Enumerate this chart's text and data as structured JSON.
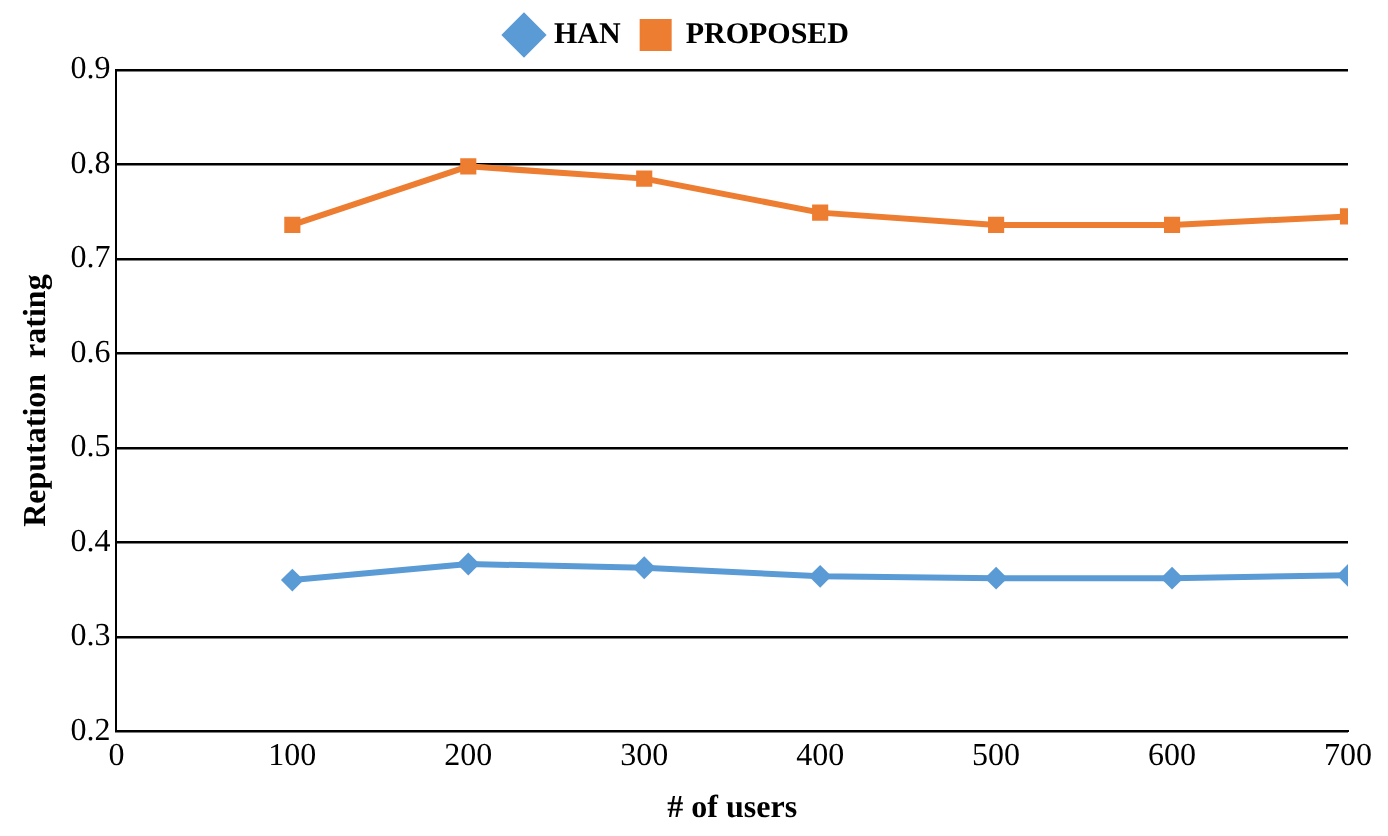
{
  "chart_data": {
    "type": "line",
    "xlabel": "# of users",
    "ylabel": "Reputation  rating",
    "x": [
      100,
      200,
      300,
      400,
      500,
      600,
      700
    ],
    "series": [
      {
        "name": "HAN",
        "color": "#5b9bd5",
        "marker": "diamond",
        "values": [
          0.36,
          0.377,
          0.373,
          0.364,
          0.362,
          0.362,
          0.365
        ]
      },
      {
        "name": "PROPOSED",
        "color": "#ed7d31",
        "marker": "square",
        "values": [
          0.736,
          0.798,
          0.785,
          0.749,
          0.736,
          0.736,
          0.745
        ]
      }
    ],
    "xlim": [
      0,
      700
    ],
    "xticks": [
      0,
      100,
      200,
      300,
      400,
      500,
      600,
      700
    ],
    "ylim": [
      0.2,
      0.9
    ],
    "yticks": [
      0.2,
      0.3,
      0.4,
      0.5,
      0.6,
      0.7,
      0.8,
      0.9
    ],
    "grid": "y",
    "legend": "top"
  }
}
